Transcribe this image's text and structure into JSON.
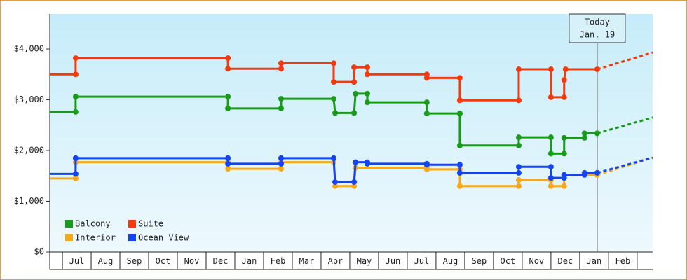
{
  "chart_data": {
    "type": "step-line",
    "xlim": [
      -0.44,
      20.54
    ],
    "xticks": [
      {
        "value": 0.5,
        "label": "Jul"
      },
      {
        "value": 1.5,
        "label": "Aug"
      },
      {
        "value": 2.5,
        "label": "Sep"
      },
      {
        "value": 3.5,
        "label": "Oct"
      },
      {
        "value": 4.5,
        "label": "Nov"
      },
      {
        "value": 5.5,
        "label": "Dec"
      },
      {
        "value": 6.5,
        "label": "Jan"
      },
      {
        "value": 7.5,
        "label": "Feb"
      },
      {
        "value": 8.5,
        "label": "Mar"
      },
      {
        "value": 9.5,
        "label": "Apr"
      },
      {
        "value": 10.5,
        "label": "May"
      },
      {
        "value": 11.5,
        "label": "Jun"
      },
      {
        "value": 12.5,
        "label": "Jul"
      },
      {
        "value": 13.5,
        "label": "Aug"
      },
      {
        "value": 14.5,
        "label": "Sep"
      },
      {
        "value": 15.5,
        "label": "Oct"
      },
      {
        "value": 16.5,
        "label": "Nov"
      },
      {
        "value": 17.5,
        "label": "Dec"
      },
      {
        "value": 18.5,
        "label": "Jan"
      },
      {
        "value": 19.5,
        "label": "Feb"
      }
    ],
    "ylim": [
      0,
      4690
    ],
    "yticks": [
      {
        "value": 0,
        "label": "$0"
      },
      {
        "value": 1000,
        "label": "$1,000"
      },
      {
        "value": 2000,
        "label": "$2,000"
      },
      {
        "value": 3000,
        "label": "$3,000"
      },
      {
        "value": 4000,
        "label": "$4,000"
      }
    ],
    "annotation": {
      "x": 18.61,
      "lines": [
        "Today",
        "Jan. 19"
      ]
    },
    "series": [
      {
        "name": "Balcony",
        "color": "#1a9a1a",
        "x": [
          -0.44,
          0.46,
          0.46,
          5.76,
          5.76,
          7.61,
          7.61,
          9.44,
          9.49,
          10.15,
          10.2,
          10.61,
          10.61,
          12.68,
          12.68,
          13.83,
          13.83,
          15.88,
          15.88,
          17.0,
          17.0,
          17.46,
          17.46,
          18.17,
          18.17,
          18.61
        ],
        "values": [
          2760,
          2760,
          3060,
          3060,
          2830,
          2830,
          3020,
          3020,
          2740,
          2740,
          3120,
          3120,
          2950,
          2950,
          2730,
          2730,
          2100,
          2100,
          2260,
          2260,
          1940,
          1940,
          2250,
          2250,
          2340,
          2340
        ],
        "forecast": {
          "x": 20.54,
          "value": 2650
        }
      },
      {
        "name": "Suite",
        "color": "#f03a10",
        "x": [
          -0.44,
          0.46,
          0.46,
          5.76,
          5.76,
          7.61,
          7.61,
          9.44,
          9.44,
          10.15,
          10.15,
          10.61,
          10.61,
          12.68,
          12.68,
          13.83,
          13.83,
          15.88,
          15.88,
          17.0,
          17.0,
          17.46,
          17.46,
          17.51,
          18.61
        ],
        "values": [
          3500,
          3500,
          3820,
          3820,
          3610,
          3610,
          3720,
          3720,
          3350,
          3350,
          3640,
          3640,
          3500,
          3500,
          3430,
          3430,
          2990,
          2990,
          3600,
          3600,
          3050,
          3050,
          3390,
          3600,
          3600
        ],
        "forecast": {
          "x": 20.54,
          "value": 3930
        }
      },
      {
        "name": "Interior",
        "color": "#f5a81c",
        "x": [
          -0.44,
          0.46,
          0.46,
          5.76,
          5.76,
          7.61,
          7.61,
          9.44,
          9.49,
          10.15,
          10.2,
          12.68,
          12.68,
          13.83,
          13.83,
          15.88,
          15.88,
          17.0,
          17.0,
          17.46,
          17.46,
          18.61
        ],
        "values": [
          1450,
          1450,
          1770,
          1770,
          1640,
          1640,
          1770,
          1770,
          1300,
          1300,
          1660,
          1660,
          1630,
          1630,
          1300,
          1300,
          1420,
          1420,
          1300,
          1300,
          1520,
          1520
        ],
        "forecast": {
          "x": 20.54,
          "value": 1860
        }
      },
      {
        "name": "Ocean View",
        "color": "#1444f0",
        "x": [
          -0.44,
          0.46,
          0.46,
          5.76,
          5.76,
          7.61,
          7.61,
          9.44,
          9.49,
          10.15,
          10.2,
          10.61,
          10.61,
          12.68,
          12.68,
          13.83,
          13.83,
          15.88,
          15.88,
          17.0,
          17.0,
          17.46,
          17.46,
          18.17,
          18.17,
          18.61
        ],
        "values": [
          1540,
          1540,
          1850,
          1850,
          1740,
          1740,
          1850,
          1850,
          1380,
          1380,
          1770,
          1770,
          1740,
          1740,
          1720,
          1720,
          1560,
          1560,
          1680,
          1680,
          1460,
          1460,
          1520,
          1520,
          1560,
          1560
        ],
        "forecast": {
          "x": 20.54,
          "value": 1860
        }
      }
    ]
  }
}
